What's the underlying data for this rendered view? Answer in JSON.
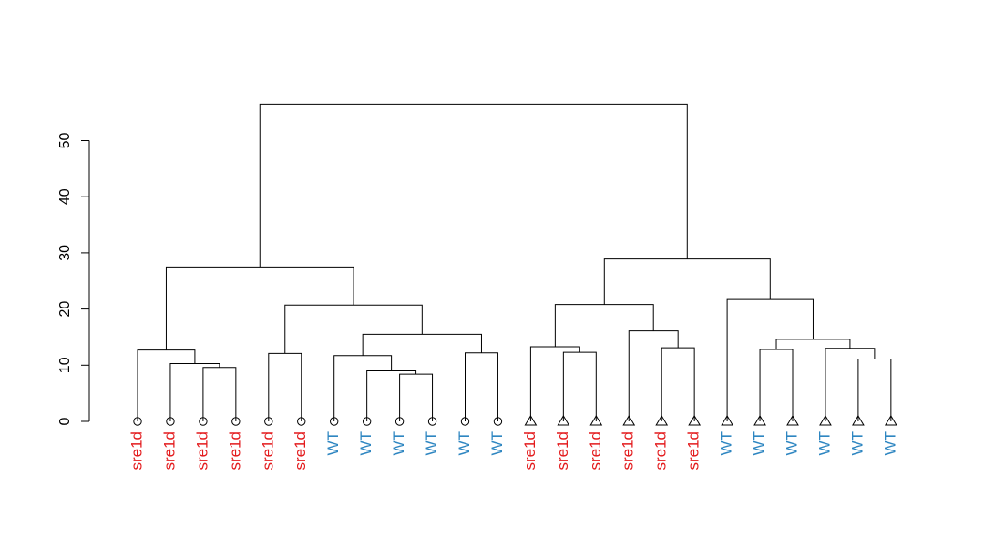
{
  "chart_data": {
    "type": "dendrogram",
    "title": "",
    "xlabel": "",
    "ylabel": "",
    "ylim": [
      0,
      50
    ],
    "yticks": [
      0,
      10,
      20,
      30,
      40,
      50
    ],
    "label_colors": {
      "sre1d": "#e31a1c",
      "WT": "#2e86c1"
    },
    "leaves": [
      {
        "label": "sre1d",
        "shape": "circle"
      },
      {
        "label": "sre1d",
        "shape": "circle"
      },
      {
        "label": "sre1d",
        "shape": "circle"
      },
      {
        "label": "sre1d",
        "shape": "circle"
      },
      {
        "label": "sre1d",
        "shape": "circle"
      },
      {
        "label": "sre1d",
        "shape": "circle"
      },
      {
        "label": "WT",
        "shape": "circle"
      },
      {
        "label": "WT",
        "shape": "circle"
      },
      {
        "label": "WT",
        "shape": "circle"
      },
      {
        "label": "WT",
        "shape": "circle"
      },
      {
        "label": "WT",
        "shape": "circle"
      },
      {
        "label": "WT",
        "shape": "circle"
      },
      {
        "label": "sre1d",
        "shape": "triangle"
      },
      {
        "label": "sre1d",
        "shape": "triangle"
      },
      {
        "label": "sre1d",
        "shape": "triangle"
      },
      {
        "label": "sre1d",
        "shape": "triangle"
      },
      {
        "label": "sre1d",
        "shape": "triangle"
      },
      {
        "label": "sre1d",
        "shape": "triangle"
      },
      {
        "label": "WT",
        "shape": "triangle"
      },
      {
        "label": "WT",
        "shape": "triangle"
      },
      {
        "label": "WT",
        "shape": "triangle"
      },
      {
        "label": "WT",
        "shape": "triangle"
      },
      {
        "label": "WT",
        "shape": "triangle"
      },
      {
        "label": "WT",
        "shape": "triangle"
      }
    ],
    "merges": [
      {
        "id": "m1",
        "left": 2,
        "right": 3,
        "height": 9.6
      },
      {
        "id": "m2",
        "left": 1,
        "right": "m1",
        "height": 10.3
      },
      {
        "id": "m3",
        "left": 0,
        "right": "m2",
        "height": 12.7
      },
      {
        "id": "m4",
        "left": 4,
        "right": 5,
        "height": 12.1
      },
      {
        "id": "m5",
        "left": 8,
        "right": 9,
        "height": 8.4
      },
      {
        "id": "m6",
        "left": 7,
        "right": "m5",
        "height": 9.0
      },
      {
        "id": "m7",
        "left": 6,
        "right": "m6",
        "height": 11.7
      },
      {
        "id": "m8",
        "left": 10,
        "right": 11,
        "height": 12.2
      },
      {
        "id": "m9",
        "left": "m7",
        "right": "m8",
        "height": 15.5
      },
      {
        "id": "m10",
        "left": "m4",
        "right": "m9",
        "height": 20.7
      },
      {
        "id": "m11",
        "left": "m3",
        "right": "m10",
        "height": 27.5
      },
      {
        "id": "m12",
        "left": 13,
        "right": 14,
        "height": 12.3
      },
      {
        "id": "m13",
        "left": 12,
        "right": "m12",
        "height": 13.3
      },
      {
        "id": "m14",
        "left": 16,
        "right": 17,
        "height": 13.1
      },
      {
        "id": "m15",
        "left": 15,
        "right": "m14",
        "height": 16.1
      },
      {
        "id": "m16",
        "left": "m13",
        "right": "m15",
        "height": 20.8
      },
      {
        "id": "m17",
        "left": 19,
        "right": 20,
        "height": 12.8
      },
      {
        "id": "m18",
        "left": 22,
        "right": 23,
        "height": 11.1
      },
      {
        "id": "m19",
        "left": 21,
        "right": "m18",
        "height": 13.0
      },
      {
        "id": "m20",
        "left": "m17",
        "right": "m19",
        "height": 14.6
      },
      {
        "id": "m21",
        "left": 18,
        "right": "m20",
        "height": 21.7
      },
      {
        "id": "m22",
        "left": "m16",
        "right": "m21",
        "height": 28.9
      },
      {
        "id": "m23",
        "left": "m11",
        "right": "m22",
        "height": 56.5
      }
    ]
  }
}
